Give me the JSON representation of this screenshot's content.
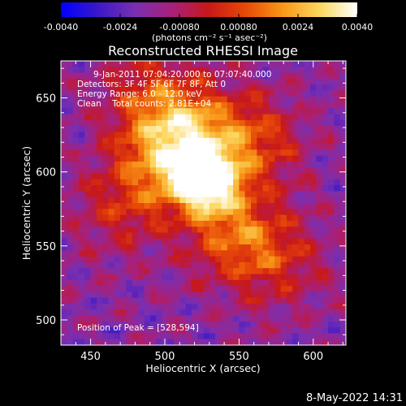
{
  "chart_data": {
    "type": "heatmap",
    "title": "Reconstructed RHESSI Image",
    "xlabel": "Heliocentric X (arcsec)",
    "ylabel": "Heliocentric Y (arcsec)",
    "xlim": [
      430,
      622
    ],
    "ylim": [
      483,
      675
    ],
    "x_ticks": [
      450,
      500,
      550,
      600
    ],
    "y_ticks": [
      500,
      550,
      600,
      650
    ],
    "colorbar": {
      "range": [
        -0.004,
        0.004
      ],
      "ticks": [
        "-0.0040",
        "-0.0024",
        "-0.00080",
        "0.00080",
        "0.0024",
        "0.0040"
      ],
      "units_label": "(photons cm⁻² s⁻¹ asec⁻²)",
      "colormap": [
        "#0000ff",
        "#3b18c8",
        "#7a2fb0",
        "#a8207a",
        "#c81818",
        "#e84a08",
        "#f89818",
        "#fcd860",
        "#ffffff"
      ]
    },
    "annotations": {
      "time_range": "9-Jan-2011 07:04:20.000 to 07:07:40.000",
      "detectors": "Detectors: 3F 4F 5F 6F 7F 8F, Att 0",
      "energy": "Energy Range: 6.0 - 12.0 keV",
      "clean": "Clean    Total counts: 2.81E+04",
      "peak": "Position of Peak = [528,594]"
    },
    "peak": [
      528,
      594
    ],
    "sources": [
      {
        "x": 528,
        "y": 594,
        "amplitude": 1.0
      },
      {
        "x": 518,
        "y": 625,
        "amplitude": 0.55
      },
      {
        "x": 498,
        "y": 605,
        "amplitude": 0.45
      },
      {
        "x": 545,
        "y": 560,
        "amplitude": 0.45
      },
      {
        "x": 560,
        "y": 620,
        "amplitude": 0.4
      },
      {
        "x": 490,
        "y": 650,
        "amplitude": 0.35
      },
      {
        "x": 575,
        "y": 540,
        "amplitude": 0.3
      },
      {
        "x": 470,
        "y": 575,
        "amplitude": 0.25
      }
    ]
  },
  "footer": {
    "timestamp": "8-May-2022 14:31"
  }
}
